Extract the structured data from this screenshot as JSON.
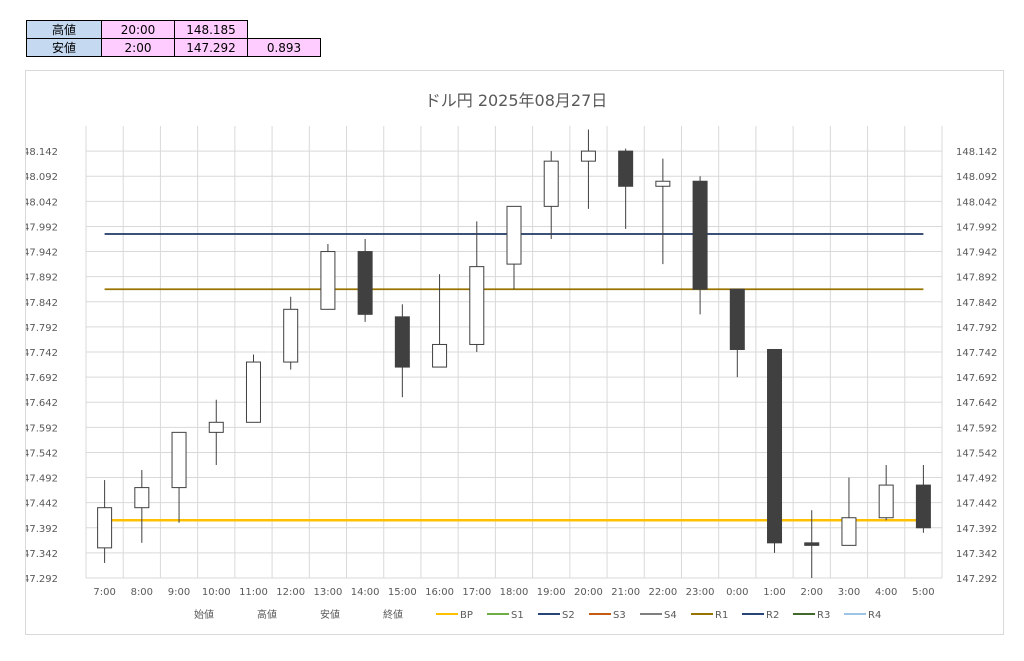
{
  "summary_table": {
    "rows": [
      {
        "label": "高値",
        "time": "20:00",
        "price": "148.185",
        "extra": ""
      },
      {
        "label": "安値",
        "time": "2:00",
        "price": "147.292",
        "extra": "0.893"
      }
    ]
  },
  "chart_data": {
    "type": "candlestick",
    "title": "ドル円 2025年08月27日",
    "categories": [
      "7:00",
      "8:00",
      "9:00",
      "10:00",
      "11:00",
      "12:00",
      "13:00",
      "14:00",
      "15:00",
      "16:00",
      "17:00",
      "18:00",
      "19:00",
      "20:00",
      "21:00",
      "22:00",
      "23:00",
      "0:00",
      "1:00",
      "2:00",
      "3:00",
      "4:00",
      "5:00"
    ],
    "candles": [
      {
        "open": 147.352,
        "high": 147.487,
        "low": 147.322,
        "close": 147.432
      },
      {
        "open": 147.432,
        "high": 147.507,
        "low": 147.362,
        "close": 147.472
      },
      {
        "open": 147.472,
        "high": 147.582,
        "low": 147.402,
        "close": 147.582
      },
      {
        "open": 147.582,
        "high": 147.647,
        "low": 147.517,
        "close": 147.602
      },
      {
        "open": 147.602,
        "high": 147.737,
        "low": 147.602,
        "close": 147.722
      },
      {
        "open": 147.722,
        "high": 147.852,
        "low": 147.707,
        "close": 147.827
      },
      {
        "open": 147.827,
        "high": 147.957,
        "low": 147.827,
        "close": 147.942
      },
      {
        "open": 147.942,
        "high": 147.967,
        "low": 147.802,
        "close": 147.817
      },
      {
        "open": 147.812,
        "high": 147.837,
        "low": 147.652,
        "close": 147.712
      },
      {
        "open": 147.712,
        "high": 147.897,
        "low": 147.712,
        "close": 147.757
      },
      {
        "open": 147.757,
        "high": 148.002,
        "low": 147.742,
        "close": 147.912
      },
      {
        "open": 147.917,
        "high": 148.032,
        "low": 147.867,
        "close": 148.032
      },
      {
        "open": 148.032,
        "high": 148.142,
        "low": 147.967,
        "close": 148.122
      },
      {
        "open": 148.122,
        "high": 148.185,
        "low": 148.027,
        "close": 148.142
      },
      {
        "open": 148.142,
        "high": 148.147,
        "low": 147.987,
        "close": 148.072
      },
      {
        "open": 148.072,
        "high": 148.127,
        "low": 147.917,
        "close": 148.082
      },
      {
        "open": 148.082,
        "high": 148.092,
        "low": 147.817,
        "close": 147.867
      },
      {
        "open": 147.867,
        "high": 147.867,
        "low": 147.692,
        "close": 147.747
      },
      {
        "open": 147.747,
        "high": 147.747,
        "low": 147.342,
        "close": 147.362
      },
      {
        "open": 147.362,
        "high": 147.427,
        "low": 147.292,
        "close": 147.357
      },
      {
        "open": 147.357,
        "high": 147.492,
        "low": 147.357,
        "close": 147.412
      },
      {
        "open": 147.412,
        "high": 147.517,
        "low": 147.407,
        "close": 147.477
      },
      {
        "open": 147.477,
        "high": 147.517,
        "low": 147.382,
        "close": 147.392
      }
    ],
    "ylim": [
      147.292,
      148.192
    ],
    "y_ticks": [
      "148.142",
      "148.092",
      "148.042",
      "147.992",
      "147.942",
      "147.892",
      "147.842",
      "147.792",
      "147.742",
      "147.692",
      "147.642",
      "147.592",
      "147.542",
      "147.492",
      "147.442",
      "147.392",
      "147.342",
      "147.292"
    ],
    "reference_lines": [
      {
        "name": "S2",
        "value": 147.977,
        "color": "#1f3864"
      },
      {
        "name": "R1",
        "value": 147.867,
        "color": "#997300"
      },
      {
        "name": "BP",
        "value": 147.407,
        "color": "#ffc000"
      }
    ],
    "legend": {
      "placement": "bottom",
      "text_items": [
        "始値",
        "高値",
        "安値",
        "終値"
      ],
      "line_items": [
        {
          "name": "BP",
          "color": "#ffc000"
        },
        {
          "name": "S1",
          "color": "#70ad47"
        },
        {
          "name": "S2",
          "color": "#264478"
        },
        {
          "name": "S3",
          "color": "#c55a11"
        },
        {
          "name": "S4",
          "color": "#7f7f7f"
        },
        {
          "name": "R1",
          "color": "#997300"
        },
        {
          "name": "R2",
          "color": "#264478"
        },
        {
          "name": "R3",
          "color": "#43682b"
        },
        {
          "name": "R4",
          "color": "#9dc3e6"
        }
      ]
    },
    "colors": {
      "up_body": "#ffffff",
      "down_body": "#404040",
      "outline": "#404040",
      "grid": "#d9d9d9"
    },
    "grid": true,
    "secondary_y_axis": true
  }
}
